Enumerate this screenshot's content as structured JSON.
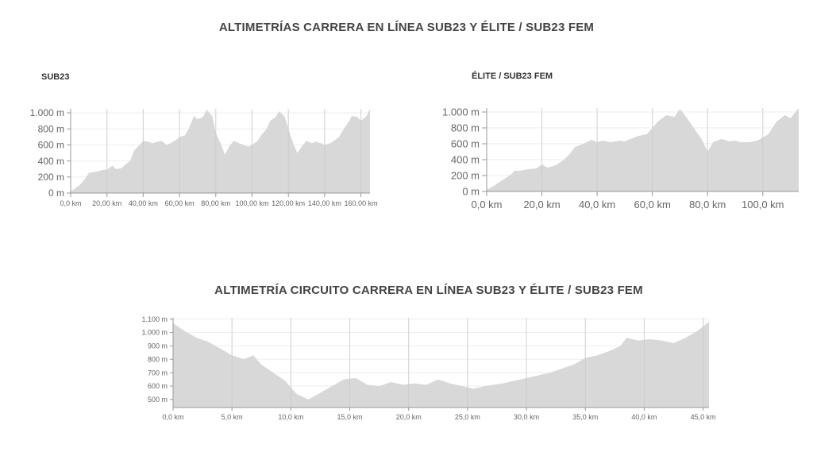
{
  "page": {
    "main_title": "ALTIMETRÍAS CARRERA EN LÍNEA SUB23 Y ÉLITE / SUB23 FEM",
    "circuit_title": "ALTIMETRÍA CIRCUITO CARRERA EN LÍNEA SUB23 Y ÉLITE / SUB23 FEM"
  },
  "chart_data": [
    {
      "type": "area",
      "title": "SUB23",
      "xlabel": "",
      "ylabel": "",
      "xlim": [
        0,
        165
      ],
      "ylim": [
        0,
        1050
      ],
      "x_ticks": [
        0,
        20,
        40,
        60,
        80,
        100,
        120,
        140,
        160
      ],
      "x_tick_labels": [
        "0,0 km",
        "20,00 km",
        "40,00 km",
        "60,00 km",
        "80,00 km",
        "100,00 km",
        "120,00 km",
        "140,00 km",
        "160,00 km"
      ],
      "y_ticks": [
        0,
        200,
        400,
        600,
        800,
        1000
      ],
      "y_tick_labels": [
        "0 m",
        "200 m",
        "400 m",
        "600 m",
        "800 m",
        "1.000 m"
      ],
      "grid": true,
      "color": "#d8d8d8",
      "x": [
        0,
        5,
        8,
        10,
        12,
        15,
        18,
        20,
        23,
        25,
        28,
        30,
        33,
        35,
        38,
        40,
        43,
        45,
        48,
        50,
        53,
        55,
        58,
        60,
        63,
        65,
        68,
        70,
        73,
        75,
        78,
        80,
        83,
        85,
        88,
        90,
        93,
        95,
        98,
        100,
        103,
        105,
        108,
        110,
        113,
        115,
        118,
        120,
        123,
        125,
        128,
        130,
        133,
        135,
        138,
        140,
        143,
        145,
        148,
        150,
        153,
        155,
        158,
        160,
        163,
        165
      ],
      "y": [
        20,
        100,
        180,
        250,
        260,
        270,
        290,
        290,
        340,
        300,
        310,
        350,
        410,
        530,
        600,
        650,
        640,
        620,
        640,
        650,
        600,
        620,
        660,
        700,
        720,
        800,
        960,
        920,
        950,
        1040,
        960,
        750,
        600,
        480,
        600,
        650,
        620,
        600,
        580,
        600,
        650,
        720,
        800,
        900,
        950,
        1020,
        950,
        800,
        600,
        500,
        600,
        650,
        620,
        640,
        620,
        600,
        620,
        650,
        700,
        780,
        880,
        960,
        950,
        900,
        960,
        1050
      ]
    },
    {
      "type": "area",
      "title": "ÉLITE / SUB23 FEM",
      "xlabel": "",
      "ylabel": "",
      "xlim": [
        0,
        113
      ],
      "ylim": [
        0,
        1050
      ],
      "x_ticks": [
        0,
        20,
        40,
        60,
        80,
        100
      ],
      "x_tick_labels": [
        "0,0 km",
        "20,0 km",
        "40,0 km",
        "60,0 km",
        "80,0 km",
        "100,0 km"
      ],
      "y_ticks": [
        0,
        200,
        400,
        600,
        800,
        1000
      ],
      "y_tick_labels": [
        "0 m",
        "200 m",
        "400 m",
        "600 m",
        "800 m",
        "1.000 m"
      ],
      "grid": true,
      "color": "#d8d8d8",
      "x": [
        0,
        3,
        6,
        9,
        10,
        12,
        15,
        18,
        20,
        22,
        25,
        28,
        30,
        32,
        35,
        38,
        40,
        42,
        45,
        48,
        50,
        52,
        55,
        58,
        60,
        62,
        65,
        68,
        70,
        72,
        75,
        78,
        80,
        82,
        85,
        88,
        90,
        92,
        95,
        98,
        100,
        102,
        105,
        108,
        110,
        113
      ],
      "y": [
        20,
        80,
        150,
        220,
        260,
        260,
        280,
        290,
        340,
        300,
        330,
        400,
        470,
        560,
        600,
        650,
        620,
        640,
        620,
        640,
        630,
        660,
        700,
        720,
        800,
        880,
        960,
        940,
        1040,
        950,
        800,
        650,
        500,
        620,
        660,
        630,
        640,
        620,
        620,
        640,
        680,
        720,
        880,
        960,
        920,
        1050
      ]
    },
    {
      "type": "area",
      "title": "ALTIMETRÍA CIRCUITO CARRERA EN LÍNEA SUB23 Y ÉLITE / SUB23 FEM",
      "xlabel": "",
      "ylabel": "",
      "xlim": [
        0,
        45.5
      ],
      "ylim": [
        440,
        1110
      ],
      "x_ticks": [
        0,
        5,
        10,
        15,
        20,
        25,
        30,
        35,
        40,
        45
      ],
      "x_tick_labels": [
        "0,0 km",
        "5,0 km",
        "10,0 km",
        "15,0 km",
        "20,0 km",
        "25,0 km",
        "30,0 km",
        "35,0 km",
        "40,0 km",
        "45,0 km"
      ],
      "y_ticks": [
        500,
        600,
        700,
        800,
        900,
        1000,
        1100
      ],
      "y_tick_labels": [
        "500 m",
        "600 m",
        "700 m",
        "800 m",
        "900 m",
        "1.000 m",
        "1.100 m"
      ],
      "grid": true,
      "color": "#d8d8d8",
      "x": [
        0,
        1,
        2,
        3,
        4,
        5,
        6,
        6.8,
        7.5,
        8.5,
        9.5,
        10.5,
        11.5,
        12.5,
        13.5,
        14.5,
        15.5,
        16.5,
        17.5,
        18.5,
        19.5,
        20.5,
        21.5,
        22.5,
        23.5,
        24.5,
        25.5,
        26.5,
        28,
        30,
        32,
        34,
        35,
        36,
        37,
        38,
        38.5,
        39.5,
        40.5,
        41.5,
        42.5,
        43.5,
        44.5,
        45.5
      ],
      "y": [
        1070,
        1010,
        960,
        930,
        880,
        830,
        800,
        830,
        760,
        700,
        640,
        540,
        500,
        550,
        600,
        650,
        660,
        610,
        600,
        630,
        610,
        620,
        610,
        650,
        620,
        600,
        580,
        600,
        620,
        660,
        700,
        760,
        810,
        830,
        860,
        900,
        960,
        940,
        950,
        940,
        920,
        960,
        1010,
        1080
      ]
    }
  ]
}
